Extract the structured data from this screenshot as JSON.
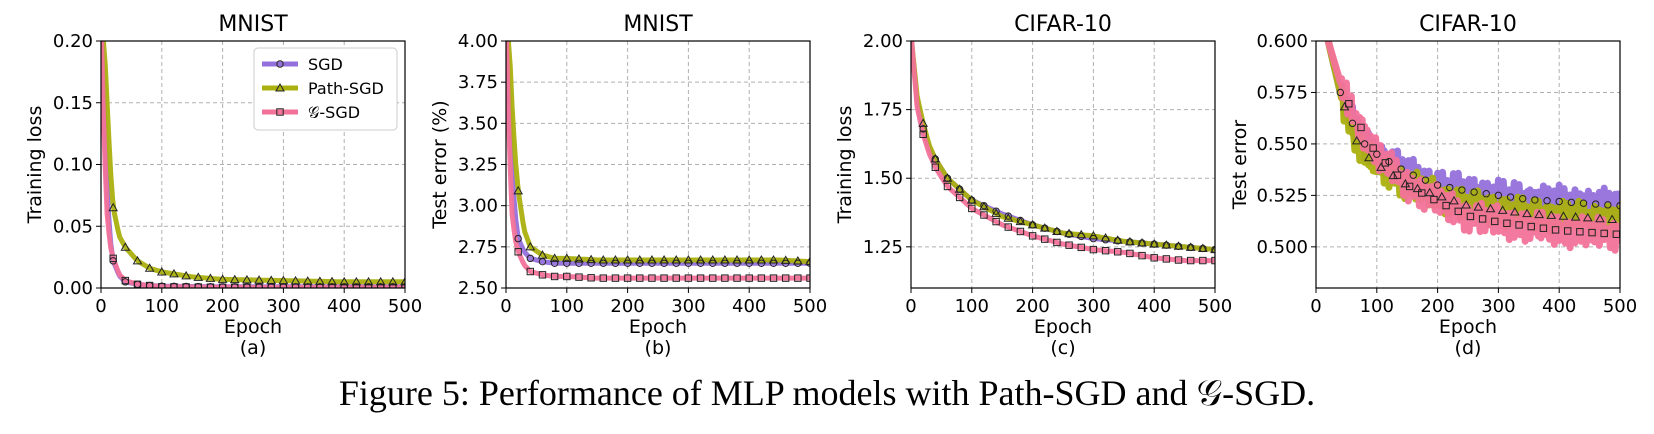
{
  "caption": "Figure 5: Performance of MLP models with Path-SGD and 𝒢-SGD.",
  "legend_labels": [
    "SGD",
    "Path-SGD",
    "𝒢-SGD"
  ],
  "series_style": [
    {
      "name": "SGD",
      "color": "#9370DB",
      "marker": "circle"
    },
    {
      "name": "Path-SGD",
      "color": "#AAB00E",
      "marker": "triangle"
    },
    {
      "name": "𝒢-SGD",
      "color": "#F2729A",
      "marker": "square"
    }
  ],
  "chart_data": [
    {
      "type": "line",
      "title": "MNIST",
      "xlabel": "Epoch",
      "ylabel": "Training loss",
      "sublabel": "(a)",
      "xlim": [
        0,
        500
      ],
      "ylim": [
        0,
        0.2
      ],
      "xticks": [
        0,
        100,
        200,
        300,
        400,
        500
      ],
      "xtick_labels": [
        "0",
        "100",
        "200",
        "300",
        "400",
        "500"
      ],
      "yticks": [
        0,
        0.05,
        0.1,
        0.15,
        0.2
      ],
      "ytick_labels": [
        "0.00",
        "0.05",
        "0.10",
        "0.15",
        "0.20"
      ],
      "grid": true,
      "legend": true,
      "legend_position": "upper-right",
      "x": [
        1,
        5,
        10,
        15,
        20,
        30,
        40,
        60,
        80,
        100,
        150,
        200,
        250,
        300,
        350,
        400,
        450,
        500
      ],
      "series": [
        {
          "values": [
            0.2,
            0.16,
            0.08,
            0.04,
            0.022,
            0.01,
            0.005,
            0.003,
            0.002,
            0.0015,
            0.0012,
            0.001,
            0.001,
            0.001,
            0.001,
            0.001,
            0.001,
            0.001
          ]
        },
        {
          "values": [
            0.2,
            0.2,
            0.15,
            0.1,
            0.065,
            0.042,
            0.033,
            0.022,
            0.016,
            0.013,
            0.009,
            0.007,
            0.0065,
            0.006,
            0.0055,
            0.005,
            0.005,
            0.005
          ]
        },
        {
          "values": [
            0.2,
            0.12,
            0.06,
            0.035,
            0.024,
            0.011,
            0.006,
            0.003,
            0.002,
            0.001,
            0.0008,
            0.0006,
            0.0005,
            0.0005,
            0.0005,
            0.0005,
            0.0005,
            0.0005
          ]
        }
      ]
    },
    {
      "type": "line",
      "title": "MNIST",
      "xlabel": "Epoch",
      "ylabel": "Test error (%)",
      "sublabel": "(b)",
      "xlim": [
        0,
        500
      ],
      "ylim": [
        2.5,
        4
      ],
      "xticks": [
        0,
        100,
        200,
        300,
        400,
        500
      ],
      "xtick_labels": [
        "0",
        "100",
        "200",
        "300",
        "400",
        "500"
      ],
      "yticks": [
        2.5,
        2.75,
        3,
        3.25,
        3.5,
        3.75,
        4
      ],
      "ytick_labels": [
        "2.50",
        "2.75",
        "3.00",
        "3.25",
        "3.50",
        "3.75",
        "4.00"
      ],
      "grid": true,
      "legend": false,
      "x": [
        1,
        5,
        10,
        15,
        20,
        30,
        40,
        60,
        80,
        100,
        150,
        200,
        250,
        300,
        350,
        400,
        450,
        500
      ],
      "series": [
        {
          "values": [
            4,
            3.7,
            3.2,
            2.95,
            2.8,
            2.72,
            2.68,
            2.66,
            2.65,
            2.65,
            2.65,
            2.65,
            2.65,
            2.65,
            2.65,
            2.65,
            2.65,
            2.65
          ]
        },
        {
          "values": [
            4,
            4,
            3.6,
            3.3,
            3.09,
            2.85,
            2.75,
            2.7,
            2.68,
            2.68,
            2.67,
            2.67,
            2.67,
            2.67,
            2.67,
            2.67,
            2.67,
            2.66
          ]
        },
        {
          "values": [
            4,
            3.4,
            2.95,
            2.8,
            2.72,
            2.64,
            2.6,
            2.58,
            2.57,
            2.57,
            2.56,
            2.56,
            2.56,
            2.56,
            2.56,
            2.56,
            2.56,
            2.56
          ]
        }
      ]
    },
    {
      "type": "line",
      "title": "CIFAR-10",
      "xlabel": "Epoch",
      "ylabel": "Training loss",
      "sublabel": "(c)",
      "xlim": [
        0,
        500
      ],
      "ylim": [
        1.1,
        2
      ],
      "xticks": [
        0,
        100,
        200,
        300,
        400,
        500
      ],
      "xtick_labels": [
        "0",
        "100",
        "200",
        "300",
        "400",
        "500"
      ],
      "yticks": [
        1.25,
        1.5,
        1.75,
        2
      ],
      "ytick_labels": [
        "1.25",
        "1.50",
        "1.75",
        "2.00"
      ],
      "grid": true,
      "legend": false,
      "x": [
        1,
        10,
        20,
        30,
        40,
        60,
        80,
        100,
        150,
        200,
        250,
        300,
        350,
        400,
        450,
        500
      ],
      "series": [
        {
          "values": [
            2,
            1.78,
            1.68,
            1.61,
            1.57,
            1.5,
            1.46,
            1.42,
            1.37,
            1.33,
            1.3,
            1.28,
            1.27,
            1.26,
            1.25,
            1.24
          ]
        },
        {
          "values": [
            2,
            1.8,
            1.7,
            1.62,
            1.57,
            1.5,
            1.46,
            1.42,
            1.36,
            1.33,
            1.3,
            1.29,
            1.27,
            1.26,
            1.25,
            1.24
          ]
        },
        {
          "values": [
            2,
            1.76,
            1.66,
            1.59,
            1.54,
            1.47,
            1.43,
            1.39,
            1.33,
            1.29,
            1.26,
            1.24,
            1.23,
            1.21,
            1.2,
            1.2
          ]
        }
      ]
    },
    {
      "type": "line",
      "title": "CIFAR-10",
      "xlabel": "Epoch",
      "ylabel": "Test error",
      "sublabel": "(d)",
      "xlim": [
        0,
        500
      ],
      "ylim": [
        0.48,
        0.6
      ],
      "xticks": [
        0,
        100,
        200,
        300,
        400,
        500
      ],
      "xtick_labels": [
        "0",
        "100",
        "200",
        "300",
        "400",
        "500"
      ],
      "yticks": [
        0.5,
        0.525,
        0.55,
        0.575,
        0.6
      ],
      "ytick_labels": [
        "0.500",
        "0.525",
        "0.550",
        "0.575",
        "0.600"
      ],
      "grid": true,
      "legend": false,
      "x": [
        20,
        40,
        60,
        80,
        100,
        150,
        200,
        250,
        300,
        350,
        400,
        450,
        500
      ],
      "series": [
        {
          "values": [
            0.6,
            0.575,
            0.56,
            0.55,
            0.545,
            0.536,
            0.53,
            0.527,
            0.525,
            0.523,
            0.522,
            0.521,
            0.52
          ]
        },
        {
          "values": [
            0.6,
            0.575,
            0.555,
            0.545,
            0.54,
            0.53,
            0.525,
            0.52,
            0.518,
            0.516,
            0.515,
            0.514,
            0.513
          ]
        },
        {
          "values": [
            0.6,
            0.58,
            0.565,
            0.555,
            0.545,
            0.53,
            0.522,
            0.515,
            0.512,
            0.51,
            0.508,
            0.507,
            0.506
          ]
        }
      ]
    }
  ]
}
